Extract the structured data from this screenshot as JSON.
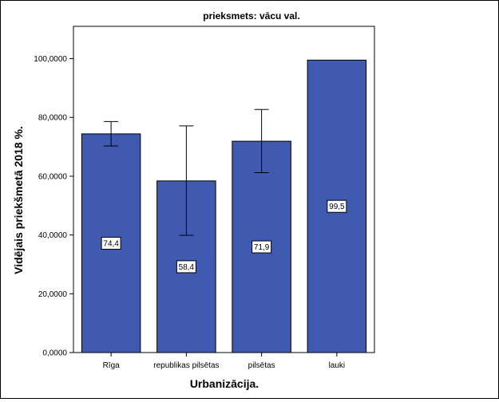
{
  "chart_data": {
    "type": "bar",
    "title": "prieksmets: vācu val.",
    "xlabel": "Urbanizācija.",
    "ylabel": "Vidējais priekšmetā 2018 %.",
    "categories": [
      "Rīga",
      "republikas pilsētas",
      "pilsētas",
      "lauki"
    ],
    "values": [
      74.4,
      58.4,
      71.9,
      99.5
    ],
    "value_labels": [
      "74,4",
      "58,4",
      "71,9",
      "99,5"
    ],
    "error_bars": [
      {
        "low": 70.3,
        "high": 78.6
      },
      {
        "low": 39.9,
        "high": 77.1
      },
      {
        "low": 61.2,
        "high": 82.7
      },
      null
    ],
    "yticks": [
      0,
      20,
      40,
      60,
      80,
      100
    ],
    "ytick_labels": [
      "0,0000",
      "20,0000",
      "40,0000",
      "60,0000",
      "80,0000",
      "100,0000"
    ],
    "ylim": [
      0,
      111
    ],
    "grid": false,
    "legend": "none",
    "bar_color": "#3F5AAF",
    "plot_background": "#ffffff"
  }
}
